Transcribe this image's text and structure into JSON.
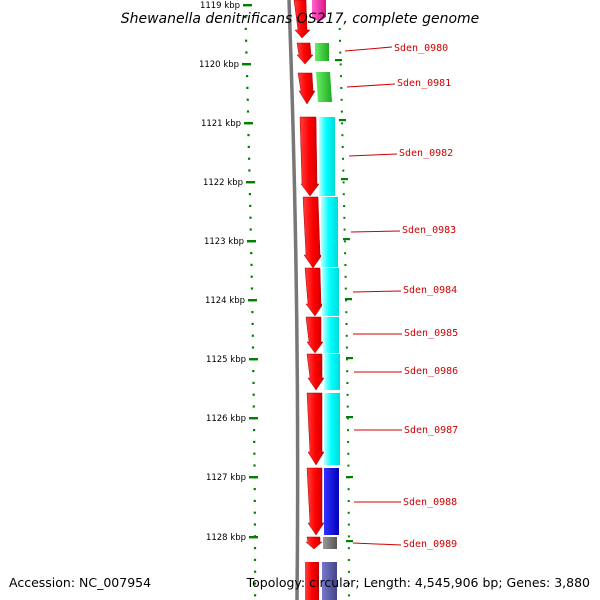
{
  "title": "Shewanella denitrificans OS217, complete genome",
  "footer": {
    "accession": "Accession: NC_007954",
    "topology": "Topology: circular; Length: 4,545,906 bp; Genes: 3,880"
  },
  "kbp_labels": [
    "1119 kbp",
    "1120 kbp",
    "1121 kbp",
    "1122 kbp",
    "1123 kbp",
    "1124 kbp",
    "1125 kbp",
    "1126 kbp",
    "1127 kbp",
    "1128 kbp"
  ],
  "colors": {
    "forward_strand": "#ff0000",
    "cog_cyan": "#00ffff",
    "cog_green": "#33cc33",
    "cog_magenta": "#ff33aa",
    "cog_blue": "#0000ee",
    "cog_grey": "#777777",
    "cog_slate": "#5555aa",
    "backbone": "#777777",
    "tick": "#008000",
    "label": "#d00000"
  },
  "genes": [
    {
      "name": "Sden_0980",
      "cog": "green"
    },
    {
      "name": "Sden_0981",
      "cog": "green"
    },
    {
      "name": "Sden_0982",
      "cog": "cyan"
    },
    {
      "name": "Sden_0983",
      "cog": "cyan"
    },
    {
      "name": "Sden_0984",
      "cog": "cyan"
    },
    {
      "name": "Sden_0985",
      "cog": "cyan"
    },
    {
      "name": "Sden_0986",
      "cog": "cyan"
    },
    {
      "name": "Sden_0987",
      "cog": "cyan"
    },
    {
      "name": "Sden_0988",
      "cog": "blue"
    },
    {
      "name": "Sden_0989",
      "cog": "grey"
    }
  ]
}
